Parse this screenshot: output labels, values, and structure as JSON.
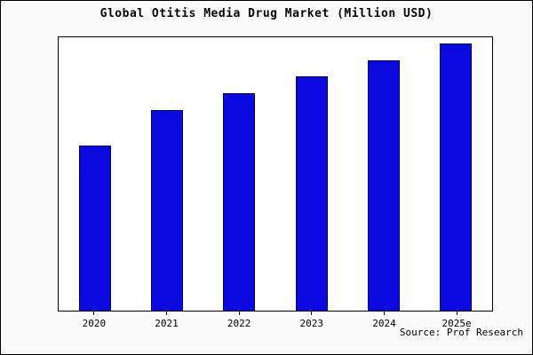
{
  "chart_data": {
    "type": "bar",
    "title": "Global Otitis Media Drug Market (Million USD)",
    "categories": [
      "2020",
      "2021",
      "2022",
      "2023",
      "2024",
      "2025e"
    ],
    "values": [
      60,
      73,
      79,
      85,
      91,
      97
    ],
    "xlabel": "",
    "ylabel": "",
    "ylim": [
      0,
      100
    ],
    "grid": false,
    "legend": "none",
    "bar_color": "#0a0ae0",
    "bar_edge_color": "#000070"
  },
  "source": "Source: Prof Research"
}
